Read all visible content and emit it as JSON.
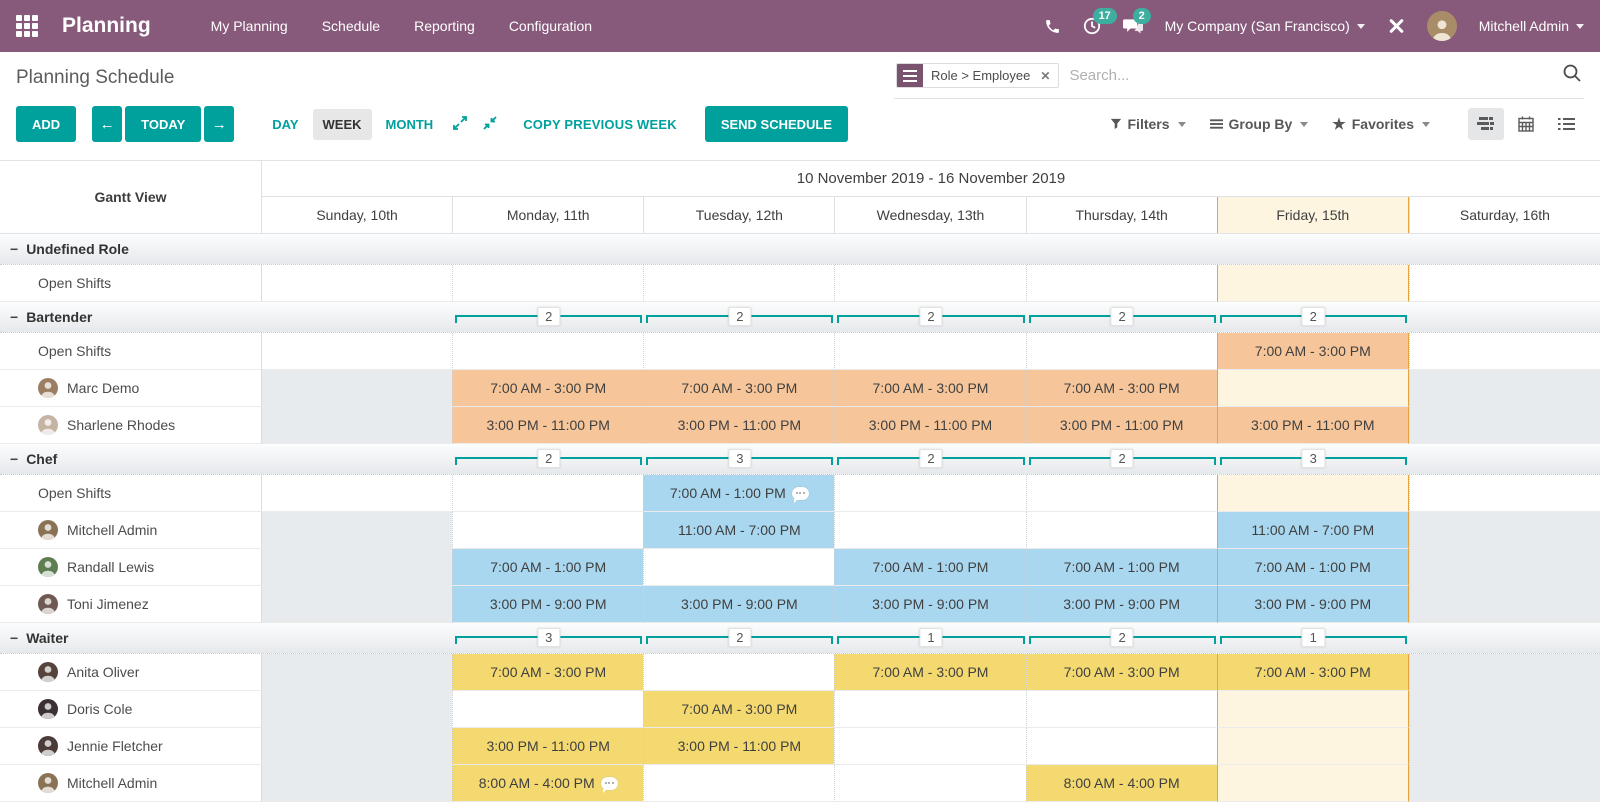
{
  "navbar": {
    "app": "Planning",
    "menu": [
      "My Planning",
      "Schedule",
      "Reporting",
      "Configuration"
    ],
    "activity_badge": "17",
    "message_badge": "2",
    "company": "My Company (San Francisco)",
    "user": "Mitchell Admin"
  },
  "search": {
    "facet": "Role > Employee",
    "placeholder": "Search..."
  },
  "control": {
    "title": "Planning Schedule",
    "add": "ADD",
    "today": "TODAY",
    "scales": [
      "DAY",
      "WEEK",
      "MONTH"
    ],
    "active_scale": "WEEK",
    "copy_previous_week": "COPY PREVIOUS WEEK",
    "send_schedule": "SEND SCHEDULE",
    "filters": "Filters",
    "group_by": "Group By",
    "favorites": "Favorites"
  },
  "gantt": {
    "corner": "Gantt View",
    "range": "10 November 2019 - 16 November 2019",
    "days": [
      "Sunday, 10th",
      "Monday, 11th",
      "Tuesday, 12th",
      "Wednesday, 13th",
      "Thursday, 14th",
      "Friday, 15th",
      "Saturday, 16th"
    ],
    "today_index": 5,
    "weekend_indexes": [
      0,
      6
    ],
    "groups": [
      {
        "name": "Undefined Role",
        "shift_color": "#f6c69a",
        "counts": [
          null,
          null,
          null,
          null,
          null,
          null,
          null
        ],
        "rows": [
          {
            "label": "Open Shifts",
            "kind": "open",
            "cells": [
              null,
              null,
              null,
              null,
              null,
              null,
              null
            ]
          }
        ]
      },
      {
        "name": "Bartender",
        "shift_color": "#f6c69a",
        "counts": [
          null,
          "2",
          "2",
          "2",
          "2",
          "2",
          null
        ],
        "rows": [
          {
            "label": "Open Shifts",
            "kind": "open",
            "cells": [
              null,
              null,
              null,
              null,
              null,
              {
                "t": "7:00 AM - 3:00 PM"
              },
              null
            ]
          },
          {
            "label": "Marc Demo",
            "kind": "employee",
            "avatar": "#9c7e62",
            "cells": [
              null,
              {
                "t": "7:00 AM - 3:00 PM"
              },
              {
                "t": "7:00 AM - 3:00 PM"
              },
              {
                "t": "7:00 AM - 3:00 PM"
              },
              {
                "t": "7:00 AM - 3:00 PM"
              },
              null,
              null
            ]
          },
          {
            "label": "Sharlene Rhodes",
            "kind": "employee",
            "avatar": "#c5b4a4",
            "cells": [
              null,
              {
                "t": "3:00 PM - 11:00 PM"
              },
              {
                "t": "3:00 PM - 11:00 PM"
              },
              {
                "t": "3:00 PM - 11:00 PM"
              },
              {
                "t": "3:00 PM - 11:00 PM"
              },
              {
                "t": "3:00 PM - 11:00 PM"
              },
              null
            ]
          }
        ]
      },
      {
        "name": "Chef",
        "shift_color": "#a9d7ef",
        "counts": [
          null,
          "2",
          "3",
          "2",
          "2",
          "3",
          null
        ],
        "rows": [
          {
            "label": "Open Shifts",
            "kind": "open",
            "cells": [
              null,
              null,
              {
                "t": "7:00 AM - 1:00 PM",
                "chat": true
              },
              null,
              null,
              null,
              null
            ]
          },
          {
            "label": "Mitchell Admin",
            "kind": "employee",
            "avatar": "#8a7355",
            "cells": [
              null,
              null,
              {
                "t": "11:00 AM - 7:00 PM"
              },
              null,
              null,
              {
                "t": "11:00 AM - 7:00 PM"
              },
              null
            ]
          },
          {
            "label": "Randall Lewis",
            "kind": "employee",
            "avatar": "#5f7d52",
            "cells": [
              null,
              {
                "t": "7:00 AM - 1:00 PM"
              },
              null,
              {
                "t": "7:00 AM - 1:00 PM"
              },
              {
                "t": "7:00 AM - 1:00 PM"
              },
              {
                "t": "7:00 AM - 1:00 PM"
              },
              null
            ]
          },
          {
            "label": "Toni Jimenez",
            "kind": "employee",
            "avatar": "#6e5a52",
            "cells": [
              null,
              {
                "t": "3:00 PM - 9:00 PM"
              },
              {
                "t": "3:00 PM - 9:00 PM"
              },
              {
                "t": "3:00 PM - 9:00 PM"
              },
              {
                "t": "3:00 PM - 9:00 PM"
              },
              {
                "t": "3:00 PM - 9:00 PM"
              },
              null
            ]
          }
        ]
      },
      {
        "name": "Waiter",
        "shift_color": "#f3d970",
        "counts": [
          null,
          "3",
          "2",
          "1",
          "2",
          "1",
          null
        ],
        "rows": [
          {
            "label": "Anita Oliver",
            "kind": "employee",
            "avatar": "#55433c",
            "cells": [
              null,
              {
                "t": "7:00 AM - 3:00 PM"
              },
              null,
              {
                "t": "7:00 AM - 3:00 PM"
              },
              {
                "t": "7:00 AM - 3:00 PM"
              },
              {
                "t": "7:00 AM - 3:00 PM"
              },
              null
            ]
          },
          {
            "label": "Doris Cole",
            "kind": "employee",
            "avatar": "#3a3136",
            "cells": [
              null,
              null,
              {
                "t": "7:00 AM - 3:00 PM"
              },
              null,
              null,
              null,
              null
            ]
          },
          {
            "label": "Jennie Fletcher",
            "kind": "employee",
            "avatar": "#4a3a38",
            "cells": [
              null,
              {
                "t": "3:00 PM - 11:00 PM"
              },
              {
                "t": "3:00 PM - 11:00 PM"
              },
              null,
              null,
              null,
              null
            ]
          },
          {
            "label": "Mitchell Admin",
            "kind": "employee",
            "avatar": "#8a7355",
            "cells": [
              null,
              {
                "t": "8:00 AM - 4:00 PM",
                "chat": true
              },
              null,
              null,
              {
                "t": "8:00 AM - 4:00 PM"
              },
              null,
              null
            ]
          }
        ]
      }
    ]
  },
  "colors": {
    "navbar_purple": "#875A7B",
    "accent_teal": "#00A09D",
    "today_bg": "#fdf5e0",
    "today_border": "#e7a33e",
    "weekend_bg": "#e8ebed",
    "bartender_shift": "#f6c69a",
    "chef_shift": "#a9d7ef",
    "waiter_shift": "#f3d970"
  }
}
